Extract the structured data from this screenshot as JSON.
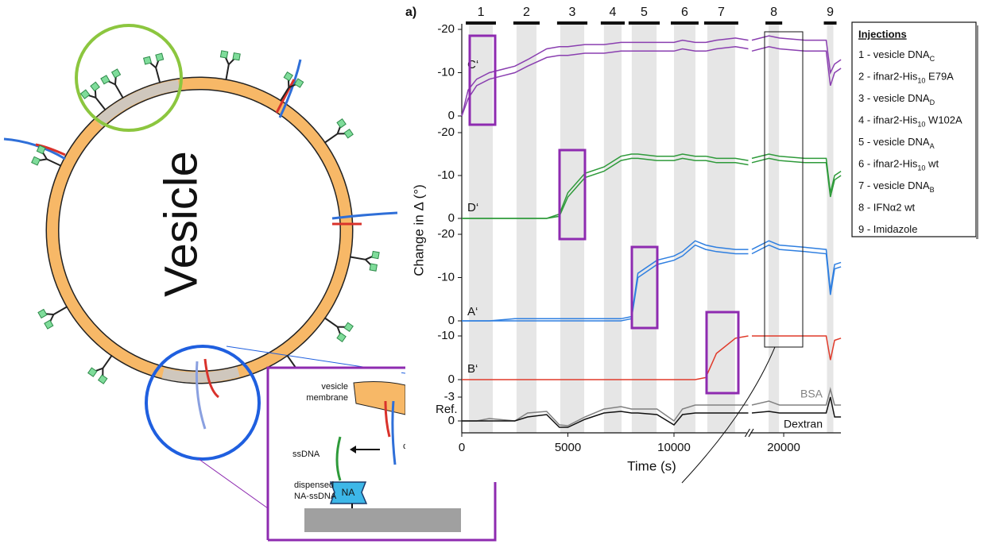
{
  "diagram": {
    "vesicle_label": "Vesicle",
    "inset": {
      "membrane": [
        "vesicle",
        "membrane"
      ],
      "cut_label": "c",
      "ssdna": "ssDNA",
      "dispensed": [
        "dispensed",
        "NA-ssDNA"
      ],
      "na": "NA"
    }
  },
  "chart_data": {
    "type": "line",
    "panel_label": "a)",
    "xlabel": "Time (s)",
    "ylabel": "Change in Δ (°)",
    "xlim": [
      0,
      22800
    ],
    "x_break": [
      13500,
      18500
    ],
    "xticks": [
      0,
      5000,
      10000,
      20000
    ],
    "x": [
      0,
      300,
      700,
      1300,
      2500,
      3100,
      4000,
      4600,
      5000,
      5800,
      6700,
      7500,
      8000,
      8300,
      9200,
      10000,
      10400,
      11000,
      11500,
      12000,
      12900,
      13500,
      16000,
      18500,
      19300,
      19800,
      21000,
      22000,
      22200,
      22400,
      22700
    ],
    "injections": [
      {
        "label": "1",
        "start": 340,
        "end": 1460
      },
      {
        "label": "2",
        "start": 2580,
        "end": 3520
      },
      {
        "label": "3",
        "start": 4640,
        "end": 5770
      },
      {
        "label": "4",
        "start": 6700,
        "end": 7530
      },
      {
        "label": "5",
        "start": 8010,
        "end": 9180
      },
      {
        "label": "6",
        "start": 10000,
        "end": 11010
      },
      {
        "label": "7",
        "start": 11570,
        "end": 12880
      },
      {
        "label": "8",
        "start": 19290,
        "end": 19780
      },
      {
        "label": "9",
        "start": 22040,
        "end": 22340
      }
    ],
    "panels": [
      {
        "label": "C‘",
        "ylim": [
          0,
          -20
        ],
        "yticks": [
          -20,
          -10,
          0
        ],
        "series": [
          {
            "color": "#8a3fb0",
            "values": [
              0,
              -6,
              -8.5,
              -10,
              -11.5,
              -13,
              -15.5,
              -16,
              -16,
              -16.5,
              -16.5,
              -17,
              -17,
              -17,
              -17,
              -17,
              -17.5,
              -17,
              -17,
              -17.5,
              -18,
              -17.5,
              null,
              -17.5,
              -18.5,
              -18,
              -17.5,
              -17.5,
              -10,
              -12,
              -13
            ]
          },
          {
            "color": "#8a3fb0",
            "values": [
              0,
              -4,
              -7,
              -8.5,
              -10,
              -11.5,
              -13.5,
              -14,
              -14,
              -14.5,
              -14.5,
              -15,
              -15,
              -15,
              -15,
              -15,
              -15.5,
              -15,
              -15,
              -15.5,
              -16,
              -15.5,
              null,
              -15,
              -16,
              -15.5,
              -15,
              -15,
              -7,
              -10,
              -11
            ]
          }
        ]
      },
      {
        "label": "D‘",
        "ylim": [
          0,
          -20
        ],
        "yticks": [
          -20,
          -10,
          0
        ],
        "series": [
          {
            "color": "#2e9a3a",
            "values": [
              0,
              0,
              0,
              0,
              0,
              0,
              0,
              -1,
              -6,
              -10.5,
              -12,
              -14.5,
              -15,
              -15,
              -14.5,
              -14.5,
              -15,
              -14.5,
              -14.5,
              -14,
              -14,
              -13.5,
              null,
              -14,
              -15,
              -14.5,
              -14,
              -14,
              -6,
              -10,
              -11
            ]
          },
          {
            "color": "#2e9a3a",
            "values": [
              0,
              0,
              0,
              0,
              0,
              0,
              0,
              -0.5,
              -5,
              -9.5,
              -11,
              -13.5,
              -14,
              -14,
              -13.5,
              -13.5,
              -14,
              -13.5,
              -13.5,
              -13,
              -13,
              -12.5,
              null,
              -13,
              -14,
              -13.5,
              -13,
              -13,
              -5,
              -9,
              -10
            ]
          }
        ]
      },
      {
        "label": "A‘",
        "ylim": [
          0,
          -20
        ],
        "yticks": [
          -20,
          -10,
          0
        ],
        "series": [
          {
            "color": "#2f7fe0",
            "values": [
              0,
              0,
              0,
              0,
              -0.5,
              -0.5,
              -0.5,
              -0.5,
              -0.5,
              -0.5,
              -0.5,
              -0.5,
              -1,
              -11,
              -14,
              -15,
              -16,
              -18.5,
              -17.5,
              -17,
              -16.5,
              -16.5,
              null,
              -16.5,
              -18.5,
              -17.5,
              -17,
              -16.5,
              -7,
              -13,
              -13.5
            ]
          },
          {
            "color": "#2f7fe0",
            "values": [
              0,
              0,
              0,
              0,
              0,
              0,
              0,
              0,
              0,
              0,
              0,
              0,
              -0.5,
              -10,
              -13,
              -14,
              -15,
              -17.5,
              -16.5,
              -16,
              -15.5,
              -15.5,
              null,
              -15.5,
              -17.5,
              -16.5,
              -16,
              -15.5,
              -6,
              -12,
              -12.5
            ]
          }
        ]
      },
      {
        "label": "B‘",
        "ylim": [
          0,
          -10
        ],
        "yticks": [
          -10,
          0
        ],
        "series": [
          {
            "color": "#e03a2a",
            "values": [
              0,
              0,
              0,
              0,
              0,
              0,
              0,
              0,
              0,
              0,
              0,
              0,
              0,
              0,
              0,
              0,
              0,
              0,
              -0.5,
              -6,
              -9.5,
              -10,
              null,
              -10,
              -10,
              -10,
              -10,
              -10,
              -4.5,
              -9,
              -9.5
            ]
          }
        ]
      },
      {
        "label": "Ref.",
        "ylim": [
          1.5,
          -4
        ],
        "yticks": [
          -3,
          0
        ],
        "series": [
          {
            "name": "BSA",
            "color": "#808080",
            "values": [
              0,
              0,
              0,
              -0.3,
              0,
              -1,
              -1.2,
              0.5,
              0.6,
              -0.5,
              -1.5,
              -1.8,
              -1.5,
              -1.5,
              -1.5,
              0,
              -1.5,
              -2,
              -2,
              -2,
              -2,
              -2,
              null,
              -2,
              -2.5,
              -2,
              -2,
              -2,
              -4,
              -2,
              -2
            ]
          },
          {
            "name": "Dextran",
            "color": "#111111",
            "values": [
              0,
              0,
              0,
              0,
              0,
              -0.5,
              -0.8,
              0.8,
              0.8,
              -0.2,
              -1,
              -1.2,
              -1,
              -1,
              -0.8,
              0.5,
              -0.8,
              -1,
              -1,
              -1,
              -1,
              -1,
              null,
              -1,
              -1.2,
              -1,
              -1,
              -1,
              -3,
              -0.5,
              -0.5
            ]
          }
        ]
      }
    ],
    "legend": {
      "title": "Injections",
      "entries": [
        [
          {
            "t": "1 - vesicle DNA"
          },
          {
            "sub": "C"
          }
        ],
        [
          {
            "t": "2 - ifnar2-His"
          },
          {
            "sub": "10"
          },
          {
            "t": " E79A"
          }
        ],
        [
          {
            "t": "3 - vesicle DNA"
          },
          {
            "sub": "D"
          }
        ],
        [
          {
            "t": "4 - ifnar2-His"
          },
          {
            "sub": "10"
          },
          {
            "t": " W102A"
          }
        ],
        [
          {
            "t": "5 - vesicle DNA"
          },
          {
            "sub": "A"
          }
        ],
        [
          {
            "t": "6 - ifnar2-His"
          },
          {
            "sub": "10"
          },
          {
            "t": " wt"
          }
        ],
        [
          {
            "t": "7 - vesicle DNA"
          },
          {
            "sub": "B"
          }
        ],
        [
          {
            "t": "8 - IFNα2 wt"
          }
        ],
        [
          {
            "t": "9 - Imidazole"
          }
        ]
      ]
    }
  }
}
